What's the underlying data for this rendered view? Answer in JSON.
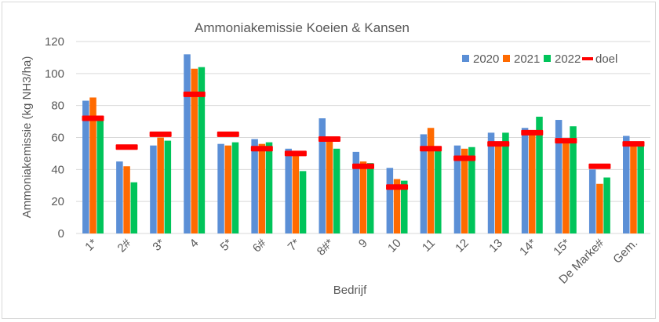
{
  "chart_data": {
    "type": "bar",
    "title": "Ammoniakemissie Koeien & Kansen",
    "xlabel": "Bedrijf",
    "ylabel": "Ammoniakemissie (kg NH3/ha)",
    "ylim": [
      0,
      120
    ],
    "yticks": [
      0,
      20,
      40,
      60,
      80,
      100,
      120
    ],
    "grid": true,
    "legend_position": "top-right",
    "categories": [
      "1*",
      "2#",
      "3*",
      "4",
      "5*",
      "6#",
      "7*",
      "8#*",
      "9",
      "10",
      "11",
      "12",
      "13",
      "14*",
      "15*",
      "De Marke#",
      "Gem."
    ],
    "series": [
      {
        "name": "2020",
        "type": "bar",
        "color": "#5b8fd6",
        "values": [
          83,
          45,
          55,
          112,
          56,
          59,
          53,
          72,
          51,
          41,
          62,
          55,
          63,
          66,
          71,
          40,
          61
        ]
      },
      {
        "name": "2021",
        "type": "bar",
        "color": "#ff6a00",
        "values": [
          85,
          42,
          60,
          103,
          55,
          56,
          50,
          59,
          45,
          34,
          66,
          53,
          55,
          63,
          58,
          31,
          56
        ]
      },
      {
        "name": "2022",
        "type": "bar",
        "color": "#00c45a",
        "values": [
          72,
          32,
          58,
          104,
          57,
          57,
          39,
          53,
          44,
          33,
          54,
          54,
          63,
          73,
          67,
          35,
          55
        ]
      },
      {
        "name": "doel",
        "type": "marker",
        "color": "#ff0000",
        "values": [
          72,
          54,
          62,
          87,
          62,
          53,
          50,
          59,
          42,
          29,
          53,
          47,
          56,
          63,
          58,
          42,
          56
        ]
      }
    ]
  }
}
